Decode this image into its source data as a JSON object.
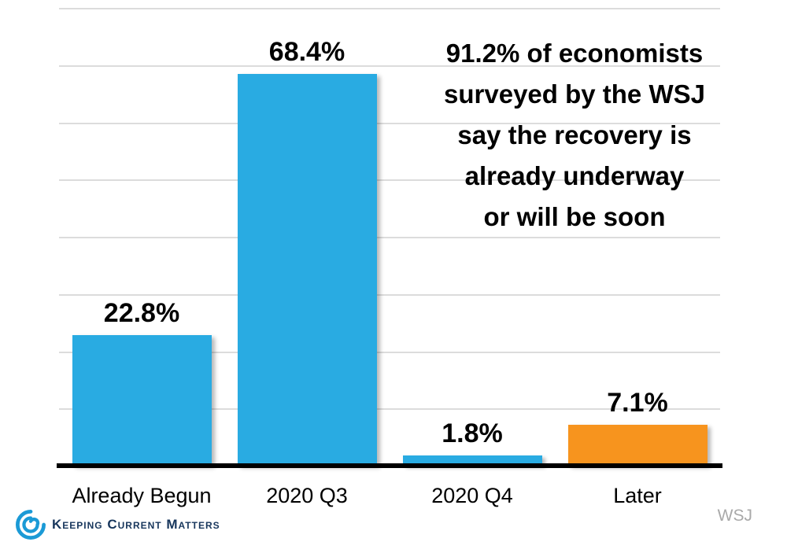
{
  "chart_data": {
    "type": "bar",
    "categories": [
      "Already Begun",
      "2020 Q3",
      "2020 Q4",
      "Later"
    ],
    "values": [
      22.8,
      68.4,
      1.8,
      7.1
    ],
    "value_labels": [
      "22.8%",
      "68.4%",
      "1.8%",
      "7.1%"
    ],
    "bar_colors": [
      "#29abe2",
      "#29abe2",
      "#29abe2",
      "#f7941e"
    ],
    "title": "",
    "xlabel": "",
    "ylabel": "",
    "ylim": [
      0,
      80
    ],
    "grid_step": 10,
    "grid": true,
    "gridline_color": "#dcdcdc",
    "axis_color": "#000000",
    "legend": "none",
    "annotation_lines": [
      "91.2% of economists",
      "surveyed by the WSJ",
      "say the recovery is",
      "already underway",
      "or will be soon"
    ]
  },
  "footer": {
    "logo_text": "Keeping Current Matters",
    "source": "WSJ"
  },
  "colors": {
    "bar_blue": "#29abe2",
    "bar_orange": "#f7941e",
    "logo_navy": "#17365c",
    "logo_blue": "#1b9ad6",
    "source_gray": "#a9a9a9"
  }
}
